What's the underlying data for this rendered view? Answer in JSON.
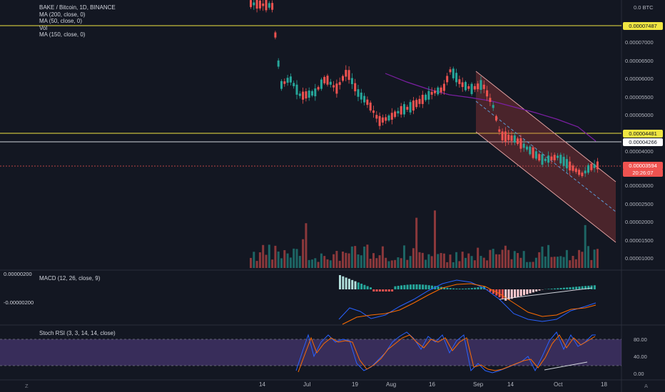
{
  "header": {
    "symbol_title": "BAKE / Bitcoin, 1D, BINANCE",
    "unit_label": "0.0 BTC"
  },
  "indicators": {
    "ma200": "MA (200, close, 0)",
    "ma50": "MA (50, close, 0)",
    "vol": "Vol",
    "ma150": "MA (150, close, 0)",
    "macd": "MACD (12, 26, close, 9)",
    "stoch": "Stoch RSI (3, 3, 14, 14, close)"
  },
  "price_axis": {
    "ticks": [
      "0.00007000",
      "0.00006500",
      "0.00006000",
      "0.00005500",
      "0.00005000",
      "0.00004000",
      "0.00003000",
      "0.00002500",
      "0.00002000",
      "0.00001500",
      "0.00001000"
    ],
    "badges": {
      "upper_level": "0.00007487",
      "mid_level": "0.00004481",
      "white_level": "0.00004266",
      "current_price": "0.00003594",
      "countdown": "20:26:07"
    }
  },
  "macd_axis": {
    "left_top": "0.00000200",
    "left_bottom": "-0.00000200"
  },
  "stoch_axis": {
    "ticks": [
      "80.00",
      "40.00",
      "0.00"
    ]
  },
  "time_axis": {
    "labels": [
      "14",
      "Jul",
      "19",
      "Aug",
      "16",
      "Sep",
      "14",
      "Oct",
      "18"
    ]
  },
  "footer": {
    "left_corner": "Z",
    "right_corner": "A"
  },
  "colors": {
    "background": "#131722",
    "up": "#26a69a",
    "down": "#ef5350",
    "level_line": "#f0e642",
    "channel": "#b23b3b",
    "ma50": "#7b1fa2",
    "stoch_band": "#7e57c2"
  }
}
